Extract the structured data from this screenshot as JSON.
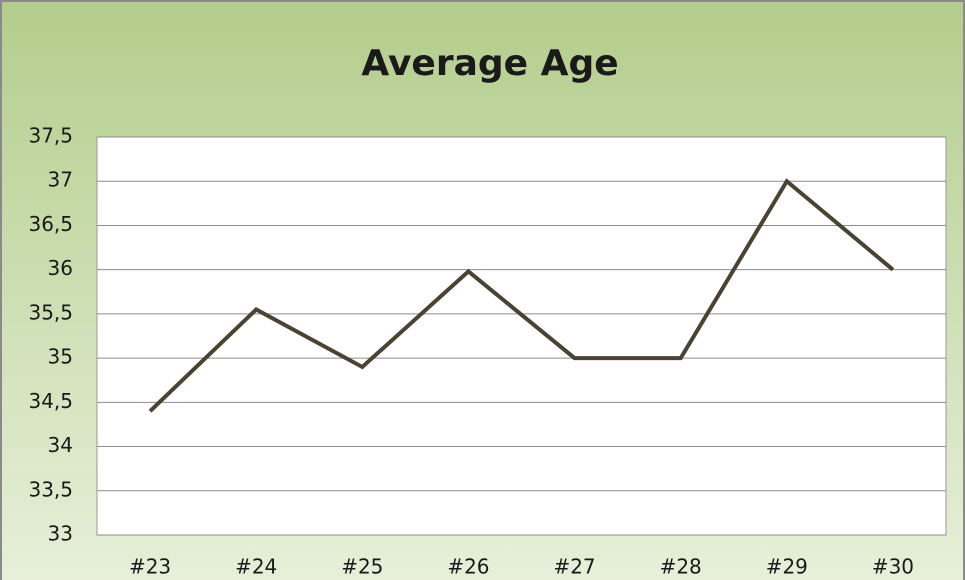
{
  "chart_data": {
    "type": "line",
    "title": "Average Age",
    "categories": [
      "#23",
      "#24",
      "#25",
      "#26",
      "#27",
      "#28",
      "#29",
      "#30"
    ],
    "series": [
      {
        "name": "Average Age",
        "color": "#4a4232",
        "values": [
          34.4,
          35.55,
          34.9,
          35.98,
          35.0,
          35.0,
          37.0,
          36.0
        ]
      }
    ],
    "ylim": [
      33,
      37.5
    ],
    "yticks": [
      33,
      {
        "value": 33.5,
        "label": "33,5"
      },
      34,
      {
        "value": 34.5,
        "label": "34,5"
      },
      35,
      {
        "value": 35.5,
        "label": "35,5"
      },
      36,
      {
        "value": 36.5,
        "label": "36,5"
      },
      37,
      {
        "value": 37.5,
        "label": "37,5"
      }
    ],
    "grid": true,
    "legend": false
  }
}
